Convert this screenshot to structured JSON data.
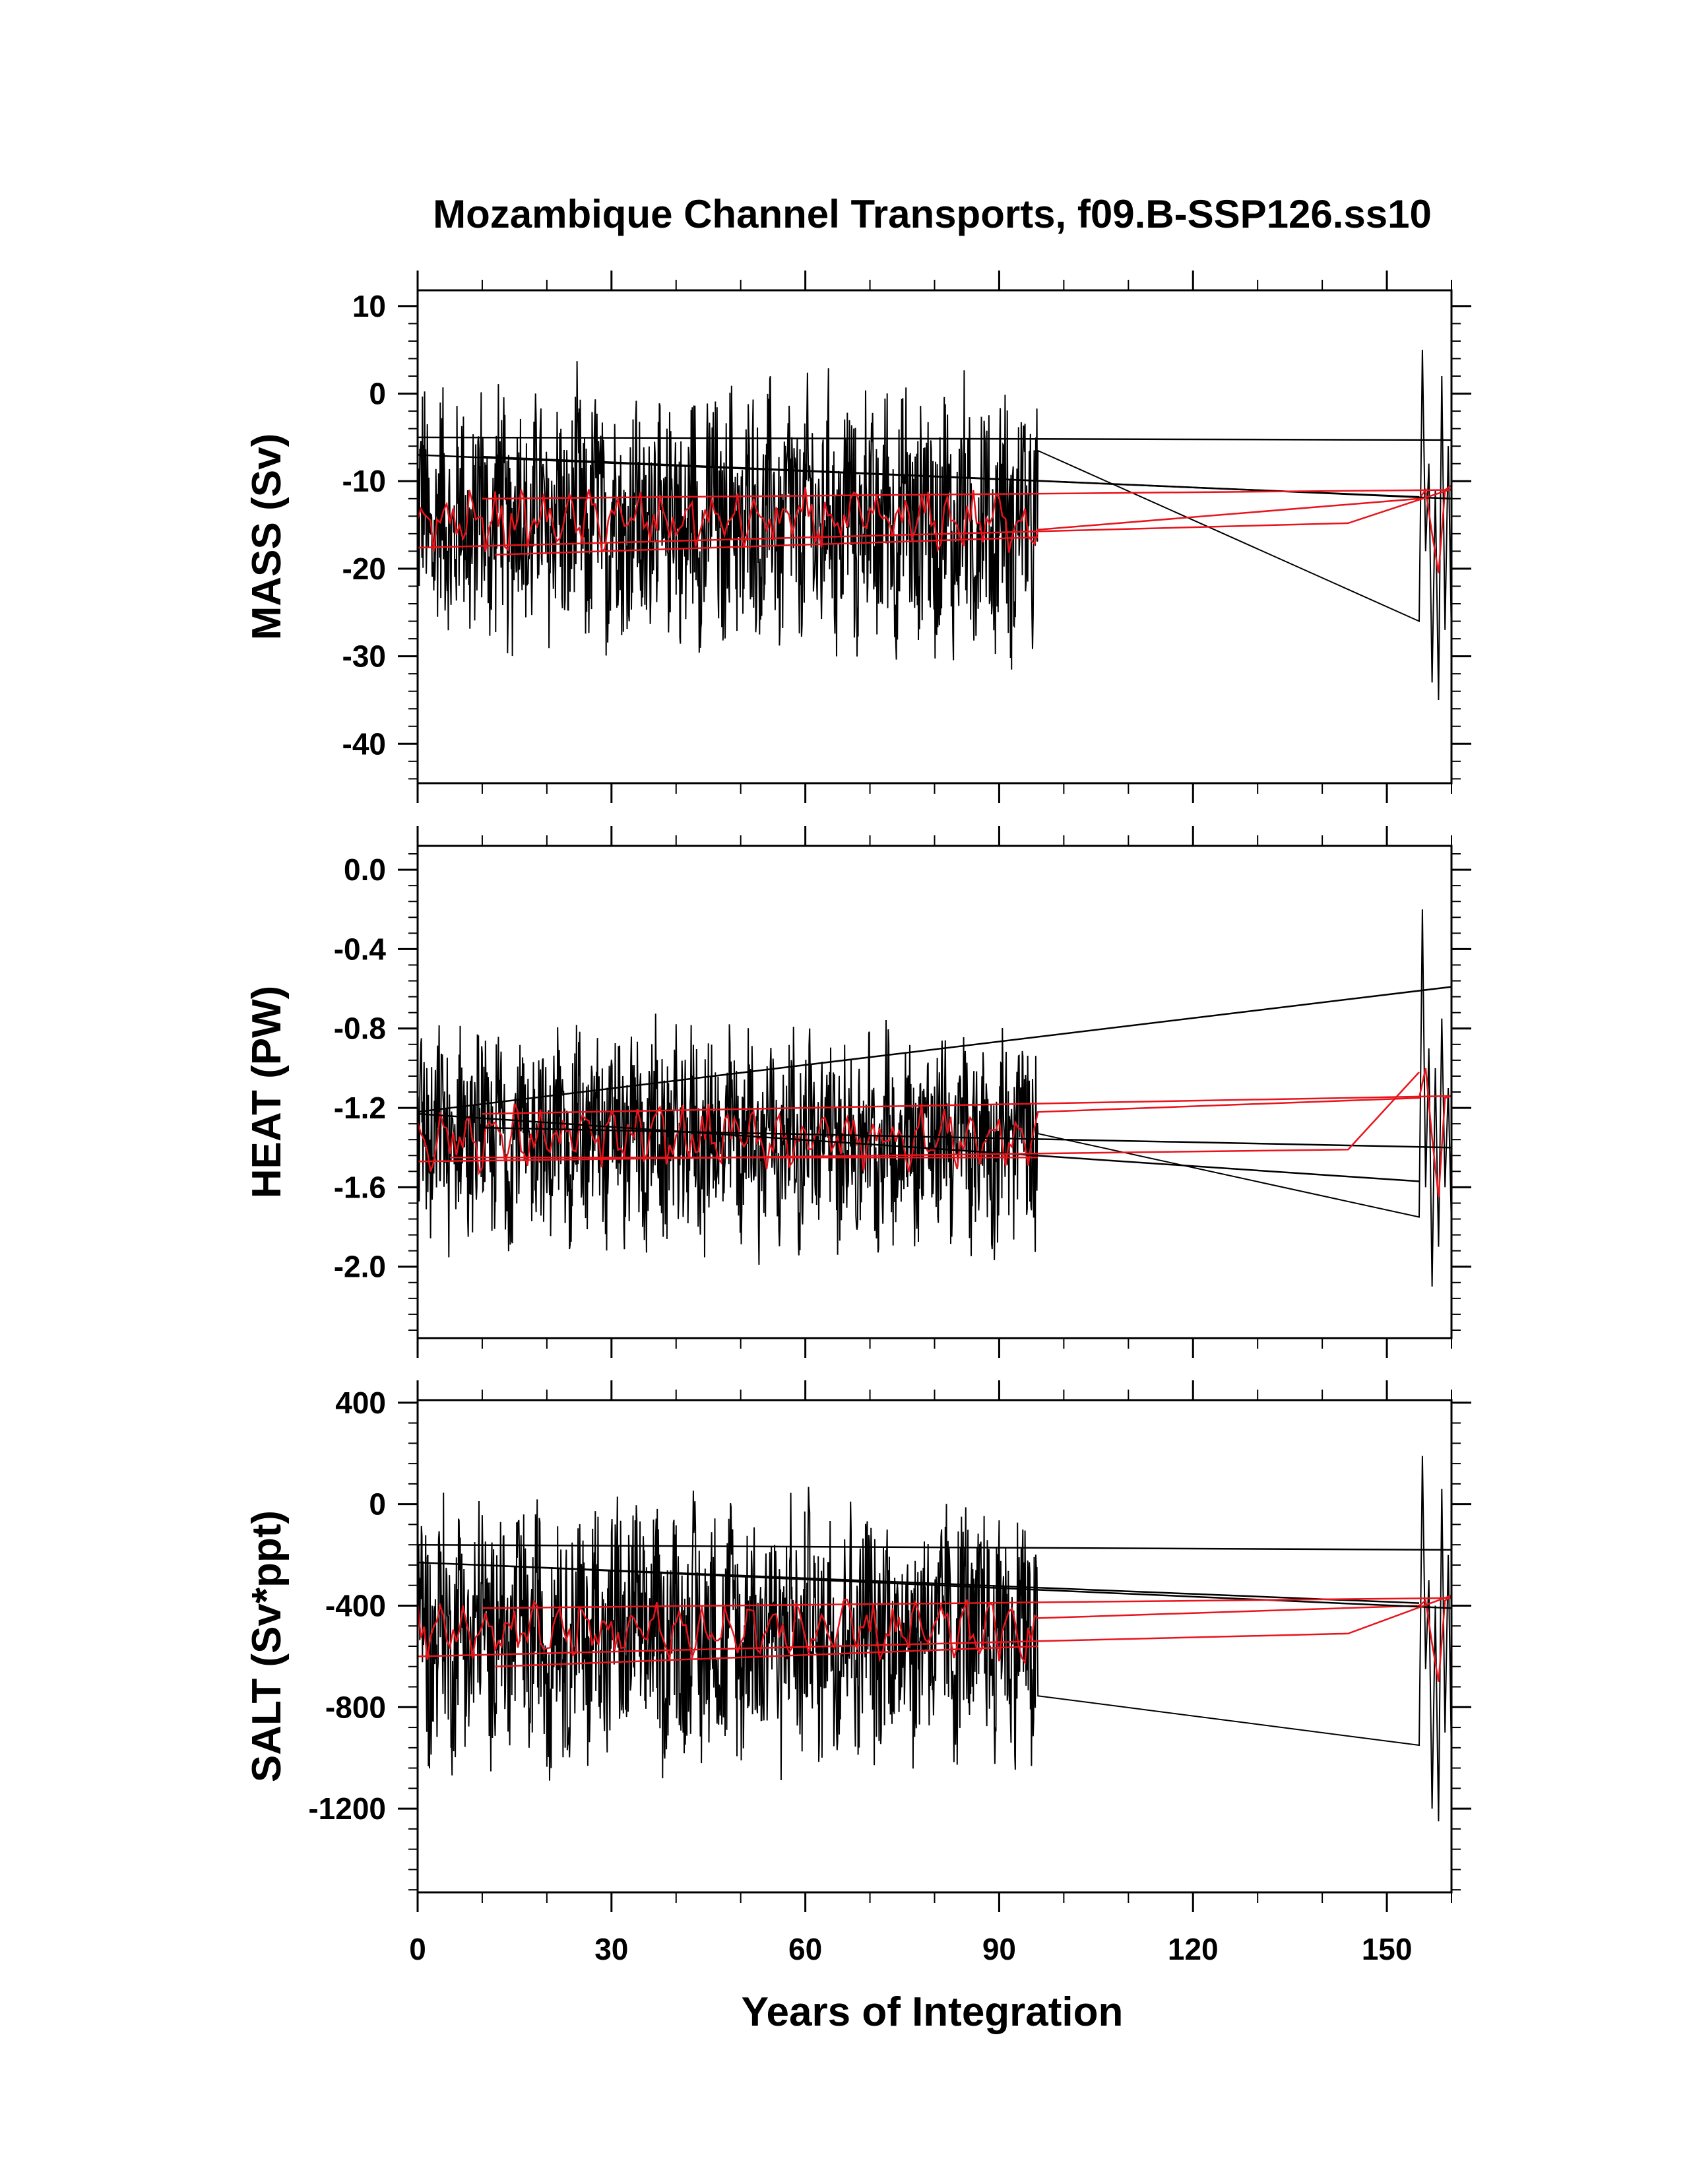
{
  "chart_data": {
    "type": "line",
    "title": "Mozambique Channel Transports, f09.B-SSP126.ss10",
    "xlabel": "Years of Integration",
    "xlim": [
      0,
      160
    ],
    "xticks": [
      0,
      30,
      60,
      90,
      120,
      150
    ],
    "xtick_labels": [
      "0",
      "30",
      "60",
      "90",
      "120",
      "150"
    ],
    "grid": false,
    "legend": "none",
    "colors": {
      "raw": "#000000",
      "smoothed": "#e8141c"
    },
    "panels": [
      {
        "key": "mass",
        "ylabel": "MASS (Sv)",
        "ylim": [
          -44.5,
          11.8
        ],
        "yticks": [
          10,
          0,
          -10,
          -20,
          -30,
          -40
        ],
        "ytick_labels": [
          "10",
          "0",
          "-10",
          "-20",
          "-30",
          "-40"
        ],
        "mean": -14.5,
        "amplitude": 12.5,
        "smooth_amp": 3.0,
        "ymin": -44.5,
        "ymax": 11.8,
        "series": [
          {
            "name": "",
            "role": "raw",
            "color": "#000000",
            "late_x": [
              155,
              155.5,
              156,
              156.5,
              157,
              157.5,
              158,
              158.5,
              159,
              159.5,
              160
            ],
            "late_y": [
              -26,
              5,
              -18,
              -8,
              -33,
              -11,
              -35,
              2,
              -27,
              -6,
              -28
            ]
          },
          {
            "name": "",
            "role": "smoothed",
            "color": "#e8141c",
            "late_x": [
              155,
              156,
              157,
              158,
              159,
              160
            ],
            "late_y": [
              -12,
              -11,
              -16,
              -20.5,
              -11,
              -10.5
            ]
          }
        ],
        "connectors": [
          {
            "color": "#000000",
            "points": [
              [
                0,
                -5
              ],
              [
                160,
                -5.3
              ]
            ]
          },
          {
            "color": "#000000",
            "points": [
              [
                10,
                -7.2
              ],
              [
                160,
                -12
              ]
            ]
          },
          {
            "color": "#000000",
            "points": [
              [
                0,
                -7
              ],
              [
                155,
                -11.8
              ]
            ]
          },
          {
            "color": "#e8141c",
            "points": [
              [
                0,
                -17.6
              ],
              [
                144,
                -14.8
              ],
              [
                160,
                -10.9
              ]
            ]
          },
          {
            "color": "#e8141c",
            "points": [
              [
                10,
                -12
              ],
              [
                160,
                -11
              ]
            ]
          },
          {
            "color": "#e8141c",
            "points": [
              [
                12,
                -18.4
              ],
              [
                96,
                -16.4
              ]
            ]
          }
        ]
      },
      {
        "key": "heat",
        "ylabel": "HEAT (PW)",
        "ylim": [
          -2.36,
          0.12
        ],
        "yticks": [
          0.0,
          -0.4,
          -0.8,
          -1.2,
          -1.6,
          -2.0
        ],
        "ytick_labels": [
          "0.0",
          "-0.4",
          "-0.8",
          "-1.2",
          "-1.6",
          "-2.0"
        ],
        "mean": -1.35,
        "amplitude": 0.45,
        "smooth_amp": 0.14,
        "ymin": -2.36,
        "ymax": 0.12,
        "series": [
          {
            "name": "",
            "role": "raw",
            "color": "#000000",
            "late_x": [
              155,
              155.5,
              156,
              156.5,
              157,
              157.5,
              158,
              158.5,
              159,
              159.5,
              160
            ],
            "late_y": [
              -1.75,
              -0.2,
              -1.6,
              -0.9,
              -2.1,
              -1.0,
              -1.9,
              -0.75,
              -1.6,
              -1.1,
              -1.8
            ]
          },
          {
            "name": "",
            "role": "smoothed",
            "color": "#e8141c",
            "late_x": [
              155,
              156,
              157,
              158,
              159,
              160
            ],
            "late_y": [
              -1.15,
              -1.0,
              -1.35,
              -1.65,
              -1.15,
              -1.14
            ]
          }
        ],
        "connectors": [
          {
            "color": "#000000",
            "points": [
              [
                0,
                -1.22
              ],
              [
                160,
                -0.59
              ]
            ]
          },
          {
            "color": "#000000",
            "points": [
              [
                0,
                -1.23
              ],
              [
                155,
                -1.57
              ]
            ]
          },
          {
            "color": "#000000",
            "points": [
              [
                10,
                -1.3
              ],
              [
                160,
                -1.4
              ]
            ]
          },
          {
            "color": "#e8141c",
            "points": [
              [
                0,
                -1.47
              ],
              [
                144,
                -1.41
              ],
              [
                155,
                -1.02
              ]
            ]
          },
          {
            "color": "#e8141c",
            "points": [
              [
                10,
                -1.23
              ],
              [
                160,
                -1.14
              ]
            ]
          },
          {
            "color": "#e8141c",
            "points": [
              [
                5,
                -1.45
              ],
              [
                96,
                -1.45
              ]
            ]
          }
        ]
      },
      {
        "key": "salt",
        "ylabel": "SALT (Sv*ppt)",
        "ylim": [
          -1530,
          410
        ],
        "yticks": [
          400,
          0,
          -400,
          -800,
          -1200
        ],
        "ytick_labels": [
          "400",
          "0",
          "-400",
          "-800",
          "-1200"
        ],
        "mean": -500,
        "amplitude": 430,
        "smooth_amp": 100,
        "ymin": -1530,
        "ymax": 410,
        "series": [
          {
            "name": "",
            "role": "raw",
            "color": "#000000",
            "late_x": [
              155,
              155.5,
              156,
              156.5,
              157,
              157.5,
              158,
              158.5,
              159,
              159.5,
              160
            ],
            "late_y": [
              -950,
              190,
              -650,
              -300,
              -1200,
              -400,
              -1250,
              60,
              -900,
              -200,
              -1000
            ]
          },
          {
            "name": "",
            "role": "smoothed",
            "color": "#e8141c",
            "late_x": [
              155,
              156,
              157,
              158,
              159,
              160
            ],
            "late_y": [
              -400,
              -380,
              -550,
              -700,
              -380,
              -360
            ]
          }
        ],
        "connectors": [
          {
            "color": "#000000",
            "points": [
              [
                0,
                -160
              ],
              [
                160,
                -180
              ]
            ]
          },
          {
            "color": "#000000",
            "points": [
              [
                10,
                -240
              ],
              [
                160,
                -410
              ]
            ]
          },
          {
            "color": "#000000",
            "points": [
              [
                0,
                -230
              ],
              [
                155,
                -390
              ]
            ]
          },
          {
            "color": "#e8141c",
            "points": [
              [
                0,
                -600
              ],
              [
                144,
                -510
              ],
              [
                160,
                -360
              ]
            ]
          },
          {
            "color": "#e8141c",
            "points": [
              [
                10,
                -410
              ],
              [
                160,
                -370
              ]
            ]
          },
          {
            "color": "#e8141c",
            "points": [
              [
                12,
                -640
              ],
              [
                96,
                -560
              ]
            ]
          }
        ]
      }
    ]
  }
}
